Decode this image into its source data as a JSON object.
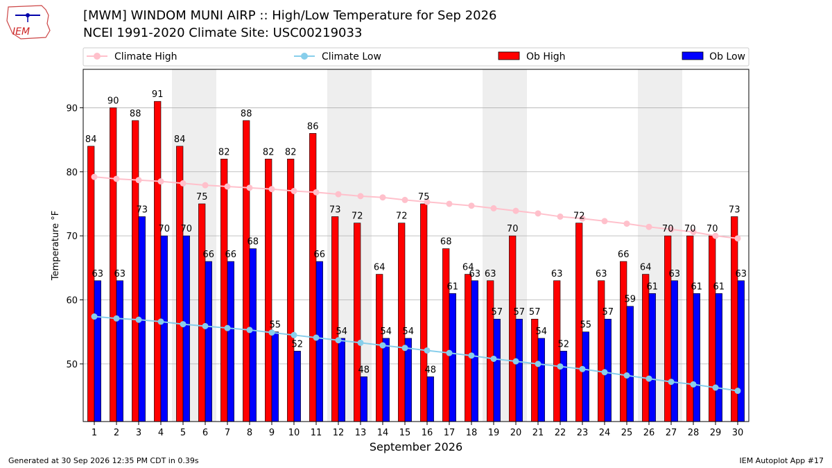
{
  "header": {
    "title_line1": "[MWM] WINDOM MUNI AIRP :: High/Low Temperature for Sep 2026",
    "title_line2": "NCEI 1991-2020 Climate Site: USC00219033",
    "logo_text": "IEM"
  },
  "footer": {
    "generated": "Generated at 30 Sep 2026 12:35 PM CDT in 0.39s",
    "app": "IEM Autoplot App #17"
  },
  "colors": {
    "ob_high": "#ff0000",
    "ob_low": "#0000ff",
    "climate_high": "#ffc0cb",
    "climate_low": "#87ceeb",
    "weekend_shade": "#eeeeee",
    "grid": "#b0b0b0"
  },
  "chart_data": {
    "type": "bar",
    "xlabel": "September 2026",
    "ylabel": "Temperature °F",
    "ylim": [
      41,
      96
    ],
    "yticks": [
      50,
      60,
      70,
      80,
      90
    ],
    "grid": "horizontal",
    "legend_position": "top",
    "categories": [
      1,
      2,
      3,
      4,
      5,
      6,
      7,
      8,
      9,
      10,
      11,
      12,
      13,
      14,
      15,
      16,
      17,
      18,
      19,
      20,
      21,
      22,
      23,
      24,
      25,
      26,
      27,
      28,
      29,
      30
    ],
    "shaded_days": [
      5,
      6,
      12,
      13,
      19,
      20,
      26,
      27
    ],
    "series": [
      {
        "name": "Climate High",
        "type": "line",
        "values": [
          79.2,
          78.9,
          78.7,
          78.5,
          78.2,
          77.9,
          77.7,
          77.5,
          77.3,
          77.0,
          76.8,
          76.5,
          76.2,
          76.0,
          75.6,
          75.3,
          75.0,
          74.7,
          74.3,
          73.9,
          73.5,
          73.0,
          72.7,
          72.3,
          71.9,
          71.4,
          71.0,
          70.6,
          70.0,
          69.6
        ]
      },
      {
        "name": "Climate Low",
        "type": "line",
        "values": [
          57.4,
          57.1,
          56.9,
          56.6,
          56.2,
          55.9,
          55.6,
          55.3,
          54.9,
          54.5,
          54.1,
          53.7,
          53.3,
          52.9,
          52.5,
          52.1,
          51.7,
          51.3,
          50.8,
          50.4,
          50.0,
          49.6,
          49.2,
          48.7,
          48.2,
          47.7,
          47.2,
          46.8,
          46.3,
          45.8
        ]
      },
      {
        "name": "Ob High",
        "type": "bar",
        "values": [
          84,
          90,
          88,
          91,
          84,
          75,
          82,
          88,
          82,
          82,
          86,
          73,
          72,
          64,
          72,
          75,
          68,
          64,
          63,
          70,
          57,
          63,
          72,
          63,
          66,
          64,
          70,
          70,
          70,
          73
        ]
      },
      {
        "name": "Ob Low",
        "type": "bar",
        "values": [
          63,
          63,
          73,
          70,
          70,
          66,
          66,
          68,
          55,
          52,
          66,
          54,
          48,
          54,
          54,
          48,
          61,
          63,
          57,
          57,
          54,
          52,
          55,
          57,
          59,
          61,
          63,
          61,
          61,
          63
        ]
      }
    ]
  }
}
